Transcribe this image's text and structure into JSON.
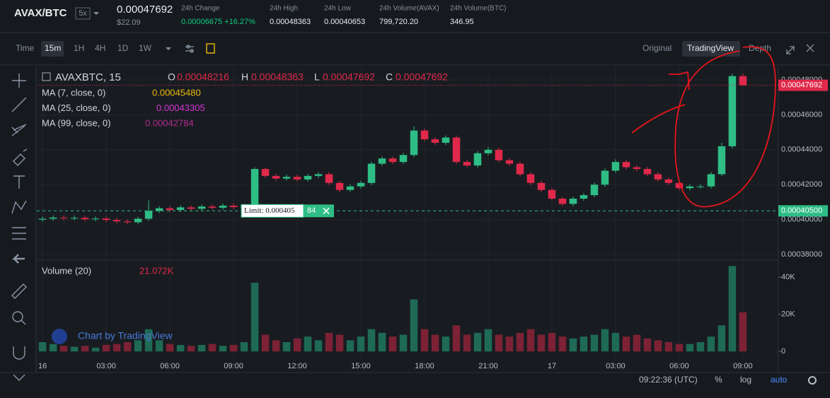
{
  "header": {
    "pair": "AVAX/BTC",
    "leverage": "5x",
    "price": "0.00047692",
    "price_usd": "$22.09",
    "stats": [
      {
        "label": "24h Change",
        "value": "0.00006675 +16.27%"
      },
      {
        "label": "24h High",
        "value": "0.00048363"
      },
      {
        "label": "24h Low",
        "value": "0.00040653"
      },
      {
        "label": "24h Volume(AVAX)",
        "value": "799,720.20"
      },
      {
        "label": "24h Volume(BTC)",
        "value": "346.95"
      }
    ]
  },
  "toolbar": {
    "intervals": [
      "Time",
      "15m",
      "1H",
      "4H",
      "1D",
      "1W"
    ],
    "views": [
      "Original",
      "TradingView",
      "Depth"
    ]
  },
  "legend": {
    "symbol": "AVAXBTC, 15",
    "o": "O",
    "h": "H",
    "l": "L",
    "c": "C",
    "ma": [
      {
        "name": "MA (7, close, 0)",
        "value": "0.00045480",
        "color": "#f0b90b"
      },
      {
        "name": "MA (25, close, 0)",
        "value": "0.00043305",
        "color": "#d633d6"
      },
      {
        "name": "MA (99, close, 0)",
        "value": "0.00042784",
        "color": "#b02a8f"
      }
    ],
    "volume_name": "Volume (20)",
    "volume_value": "21.072K",
    "watermark": "Chart by TradingView"
  },
  "footer": {
    "clock": "09:22:36 (UTC)",
    "percent": "%",
    "log": "log",
    "auto": "auto"
  },
  "chart_data": {
    "type": "candlestick",
    "up_color": "#2ebd85",
    "down_color": "#e0294a",
    "grid": true,
    "x": [
      0,
      0.5,
      1,
      1.5,
      2,
      2.5,
      3,
      3.5,
      4,
      4.5,
      5,
      5.5,
      6,
      6.5,
      7,
      7.5,
      8,
      8.5,
      9,
      9.5,
      10,
      10.5,
      11,
      11.5,
      12,
      12.5,
      13,
      13.5,
      14,
      14.5,
      15,
      15.5,
      16,
      16.5,
      17,
      17.5,
      18,
      18.5,
      19,
      19.5,
      20,
      20.5,
      21,
      21.5,
      22,
      22.5,
      23,
      23.5,
      24,
      24.5,
      25,
      25.5,
      26,
      26.5,
      27,
      27.5,
      28,
      28.5,
      29,
      29.5,
      30,
      30.5,
      31,
      31.5,
      32,
      32.5,
      33
    ],
    "open": [
      0.0004,
      0.0004005,
      0.0004012,
      0.0004008,
      0.000401,
      0.0004002,
      0.0004006,
      0.0003998,
      0.000399,
      0.0003985,
      0.0004005,
      0.000405,
      0.0004065,
      0.0004055,
      0.000407,
      0.0004062,
      0.0004075,
      0.0004068,
      0.000408,
      0.0004072,
      0.0004078,
      0.000429,
      0.000425,
      0.0004235,
      0.0004245,
      0.000423,
      0.000425,
      0.000426,
      0.000421,
      0.000417,
      0.000419,
      0.000421,
      0.000432,
      0.000435,
      0.000433,
      0.000437,
      0.000451,
      0.000446,
      0.000444,
      0.000447,
      0.000433,
      0.000431,
      0.000438,
      0.00044,
      0.000434,
      0.000432,
      0.000426,
      0.000421,
      0.000417,
      0.000412,
      0.000409,
      0.000412,
      0.000414,
      0.00042,
      0.000428,
      0.000433,
      0.00043,
      0.000429,
      0.000426,
      0.000423,
      0.000421,
      0.000418,
      0.000419,
      0.000419,
      0.000426,
      0.000442,
      0.00048216
    ],
    "high": [
      0.0004017,
      0.0004024,
      0.0004024,
      0.0004022,
      0.0004022,
      0.0004018,
      0.0004018,
      0.000401,
      0.0004002,
      0.0004017,
      0.000411,
      0.0004077,
      0.0004077,
      0.0004082,
      0.0004082,
      0.0004087,
      0.0004087,
      0.0004092,
      0.0004092,
      0.000409,
      0.00043,
      0.0004298,
      0.0004262,
      0.0004257,
      0.0004257,
      0.0004262,
      0.0004272,
      0.0004272,
      0.0004222,
      0.0004202,
      0.0004222,
      0.0004332,
      0.0004362,
      0.0004362,
      0.0004382,
      0.0004535,
      0.0004522,
      0.0004472,
      0.0004482,
      0.0004482,
      0.0004342,
      0.0004392,
      0.0004415,
      0.0004412,
      0.0004352,
      0.0004332,
      0.0004272,
      0.0004222,
      0.0004182,
      0.0004132,
      0.0004132,
      0.0004152,
      0.0004212,
      0.0004292,
      0.0004345,
      0.0004342,
      0.0004312,
      0.0004302,
      0.0004272,
      0.0004242,
      0.0004222,
      0.0004202,
      0.0004202,
      0.0004272,
      0.000444,
      0.00048363,
      0.00048363
    ],
    "low": [
      0.0003988,
      0.0003993,
      0.0003996,
      0.0003996,
      0.000399,
      0.000399,
      0.0003986,
      0.0003978,
      0.0003973,
      0.0003973,
      0.0003993,
      0.0004038,
      0.0004043,
      0.0004043,
      0.000405,
      0.000405,
      0.0004056,
      0.0004056,
      0.000406,
      0.000406,
      0.0004066,
      0.0004238,
      0.0004223,
      0.0004223,
      0.0004218,
      0.0004218,
      0.0004238,
      0.0004198,
      0.0004158,
      0.0004158,
      0.0004178,
      0.0004198,
      0.0004308,
      0.0004318,
      0.0004318,
      0.0004358,
      0.0004448,
      0.0004428,
      0.0004428,
      0.0004318,
      0.0004298,
      0.0004298,
      0.0004368,
      0.0004328,
      0.0004308,
      0.0004248,
      0.0004198,
      0.0004158,
      0.0004108,
      0.0004078,
      0.0004078,
      0.0004108,
      0.0004128,
      0.0004188,
      0.0004268,
      0.0004288,
      0.0004278,
      0.0004248,
      0.0004218,
      0.0004198,
      0.0004168,
      0.0004168,
      0.0004178,
      0.0004178,
      0.0004248,
      0.0004408,
      0.00047692
    ],
    "close": [
      0.0004005,
      0.0004012,
      0.0004008,
      0.000401,
      0.0004002,
      0.0004006,
      0.0003998,
      0.000399,
      0.0003985,
      0.0004005,
      0.000405,
      0.0004065,
      0.0004055,
      0.000407,
      0.0004062,
      0.0004075,
      0.0004068,
      0.000408,
      0.0004072,
      0.0004078,
      0.000429,
      0.000425,
      0.0004235,
      0.0004245,
      0.000423,
      0.000425,
      0.000426,
      0.000421,
      0.000417,
      0.000419,
      0.000421,
      0.000432,
      0.000435,
      0.000433,
      0.000437,
      0.000451,
      0.000446,
      0.000444,
      0.000447,
      0.000433,
      0.000431,
      0.000438,
      0.00044,
      0.000434,
      0.000432,
      0.000426,
      0.000421,
      0.000417,
      0.000412,
      0.000409,
      0.000412,
      0.000414,
      0.00042,
      0.000428,
      0.000433,
      0.00043,
      0.000429,
      0.000426,
      0.000423,
      0.000421,
      0.000418,
      0.000419,
      0.000419,
      0.000426,
      0.000442,
      0.00048216,
      0.00047692
    ],
    "xlim": [
      -0.27,
      34.67
    ],
    "xticks": [
      {
        "value": 0,
        "label": "16"
      },
      {
        "value": 3,
        "label": "03:00"
      },
      {
        "value": 6,
        "label": "06:00"
      },
      {
        "value": 9,
        "label": "09:00"
      },
      {
        "value": 12,
        "label": "12:00"
      },
      {
        "value": 15,
        "label": "15:00"
      },
      {
        "value": 18,
        "label": "18:00"
      },
      {
        "value": 21,
        "label": "21:00"
      },
      {
        "value": 24,
        "label": "17"
      },
      {
        "value": 27,
        "label": "03:00"
      },
      {
        "value": 30,
        "label": "06:00"
      },
      {
        "value": 33,
        "label": "09:00"
      }
    ],
    "ylim": [
      0.000378,
      0.0004873
    ],
    "yticks": [
      {
        "value": 0.00038,
        "label": "0.00038000"
      },
      {
        "value": 0.0004,
        "label": "0.00040000"
      },
      {
        "value": 0.00042,
        "label": "0.00042000"
      },
      {
        "value": 0.00044,
        "label": "0.00044000"
      },
      {
        "value": 0.00046,
        "label": "0.00046000"
      },
      {
        "value": 0.00048,
        "label": "0.00048000"
      }
    ],
    "limit": {
      "value": 0.000405,
      "label": "Limit: 0.000405",
      "quantity": 84,
      "axis_label": "0.00040500"
    },
    "volume": {
      "values": [
        5000,
        4000,
        3000,
        2500,
        3000,
        2000,
        3500,
        4000,
        5000,
        6000,
        12000,
        6000,
        4000,
        3500,
        3000,
        3500,
        4000,
        3000,
        3500,
        5000,
        37000,
        9000,
        6000,
        5000,
        7000,
        8000,
        6000,
        10000,
        9000,
        6000,
        8000,
        12000,
        10000,
        8000,
        9000,
        28000,
        12000,
        9000,
        8000,
        14000,
        9000,
        10000,
        12000,
        9000,
        8000,
        10000,
        12000,
        9000,
        10000,
        8000,
        7000,
        8000,
        9000,
        12000,
        10000,
        8000,
        9000,
        7000,
        6000,
        5000,
        4000,
        4000,
        5000,
        8000,
        14000,
        46000,
        21072
      ],
      "ylim": [
        -3000,
        48400
      ],
      "yticks": [
        0,
        {
          "value": 20000,
          "label": "20K"
        },
        {
          "value": 40000,
          "label": "40K"
        }
      ],
      "up_color": "#1e6a55",
      "down_color": "#7c2234"
    }
  }
}
